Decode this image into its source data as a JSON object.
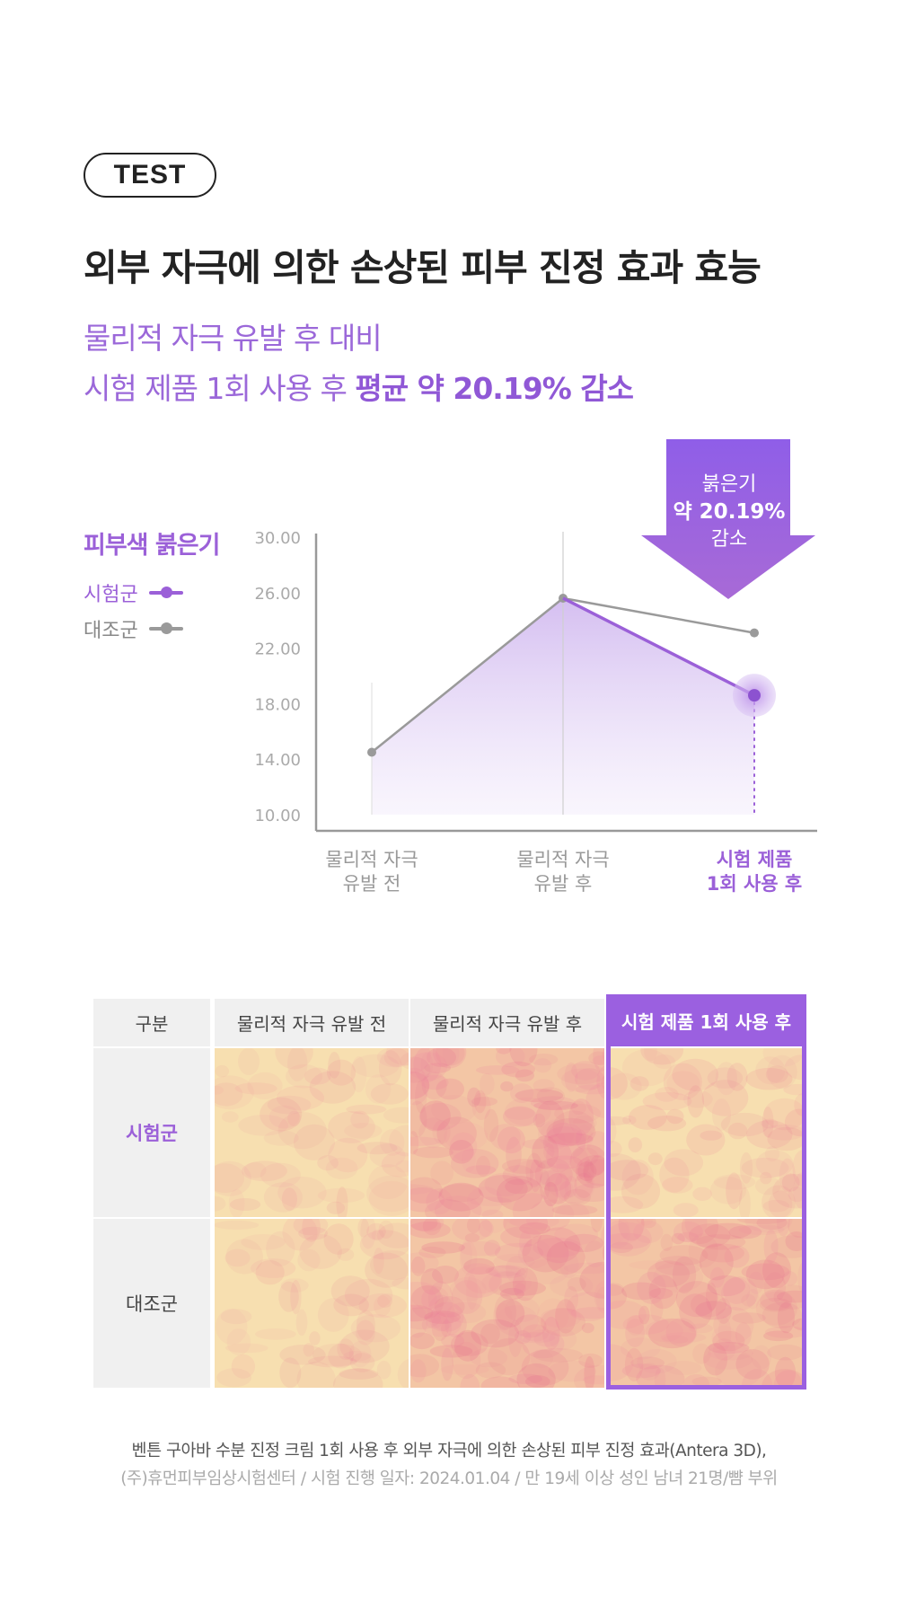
{
  "badge": "TEST",
  "headline": "외부 자극에 의한 손상된 피부 진정 효과 효능",
  "subtitle_line1": "물리적 자극 유발 후 대비",
  "subtitle_line2_plain": "시험 제품 1회 사용 후 ",
  "subtitle_line2_bold": "평균 약 20.19% 감소",
  "callout": {
    "line1": "붉은기",
    "line2": "약 20.19%",
    "line3": "감소"
  },
  "chart_data": {
    "type": "line",
    "title": "피부색 붉은기",
    "categories": [
      "물리적 자극 유발 전",
      "물리적 자극 유발 후",
      "시험 제품 1회 사용 후"
    ],
    "category_lines": [
      [
        "물리적 자극",
        "유발 전"
      ],
      [
        "물리적 자극",
        "유발 후"
      ],
      [
        "시험 제품",
        "1회 사용 후"
      ]
    ],
    "ylim": [
      10,
      30
    ],
    "yticks": [
      "30.00",
      "26.00",
      "22.00",
      "18.00",
      "14.00",
      "10.00"
    ],
    "legend_placement": "left",
    "series": [
      {
        "name": "시험군",
        "values": [
          14.5,
          25.6,
          18.6
        ],
        "color": "#9b60d8"
      },
      {
        "name": "대조군",
        "values": [
          14.5,
          25.6,
          23.1
        ],
        "color": "#9a9a9a"
      }
    ]
  },
  "table": {
    "headers": [
      "구분",
      "물리적 자극 유발 전",
      "물리적 자극 유발 후",
      "시험 제품 1회 사용 후"
    ],
    "rows": [
      {
        "label": "시험군",
        "redness": [
          0.2,
          0.85,
          0.3
        ]
      },
      {
        "label": "대조군",
        "redness": [
          0.2,
          0.75,
          0.65
        ]
      }
    ],
    "highlight_color": "#9b60e0"
  },
  "footnote_line1": "벤튼 구아바 수분 진정 크림 1회 사용 후 외부 자극에 의한 손상된 피부 진정 효과(Antera 3D),",
  "footnote_line2": "(주)휴먼피부임상시험센터 / 시험 진행 일자: 2024.01.04 / 만 19세 이상 성인 남녀 21명/뺨 부위"
}
